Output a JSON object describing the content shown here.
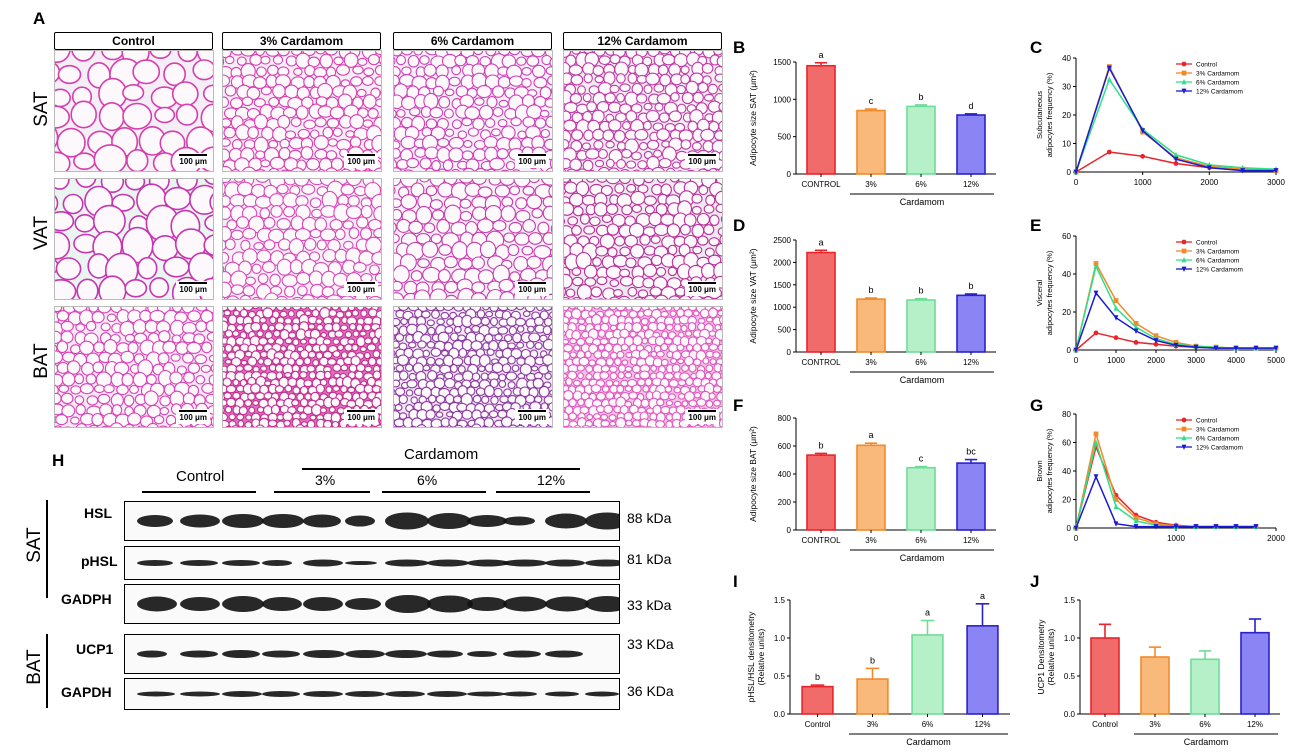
{
  "panels": {
    "A": "A",
    "B": "B",
    "C": "C",
    "D": "D",
    "E": "E",
    "F": "F",
    "G": "G",
    "H": "H",
    "I": "I",
    "J": "J"
  },
  "histology": {
    "columns": [
      "Control",
      "3% Cardamom",
      "6% Cardamom",
      "12% Cardamom"
    ],
    "rows": [
      "SAT",
      "VAT",
      "BAT"
    ],
    "scale_bar": "100 μm"
  },
  "western": {
    "group_label": "Cardamom",
    "control_label": "Control",
    "doses": [
      "3%",
      "6%",
      "12%"
    ],
    "sat_label": "SAT",
    "bat_label": "BAT",
    "bands": [
      {
        "protein": "HSL",
        "kda": "88 kDa"
      },
      {
        "protein": "pHSL",
        "kda": "81 kDa"
      },
      {
        "protein": "GADPH",
        "kda": "33 kDa"
      },
      {
        "protein": "UCP1",
        "kda": "33 KDa"
      },
      {
        "protein": "GAPDH",
        "kda": "36 KDa"
      }
    ]
  },
  "colors": {
    "control": "#f26b6b",
    "c3": "#f9b97a",
    "c6": "#b6f0c8",
    "c12": "#8a84f5",
    "control_edge": "#e8252a",
    "c3_edge": "#f28a2a",
    "c6_edge": "#6fdc98",
    "c12_edge": "#2a22c8",
    "line_control": "#e8252a",
    "line_c3": "#f28a2a",
    "line_c6": "#2ee08a",
    "line_c12": "#1a1ad0"
  },
  "chart_data": [
    {
      "id": "B",
      "type": "bar",
      "categories": [
        "CONTROL",
        "3%",
        "6%",
        "12%"
      ],
      "values": [
        1450,
        850,
        905,
        790
      ],
      "errors": [
        40,
        20,
        20,
        15
      ],
      "letters": [
        "a",
        "c",
        "b",
        "d"
      ],
      "ylabel": "Adipocyte size SAT (μm²)",
      "xlabel": "Cardamom",
      "ylim": [
        0,
        1500
      ],
      "yticks": [
        0,
        500,
        1000,
        1500
      ]
    },
    {
      "id": "C",
      "type": "line",
      "ylabel_lines": [
        "Subcutaneous",
        "adipocytes frequency (%)"
      ],
      "xlim": [
        0,
        3000
      ],
      "ylim": [
        0,
        40
      ],
      "xticks": [
        0,
        1000,
        2000,
        3000
      ],
      "yticks": [
        0,
        10,
        20,
        30,
        40
      ],
      "legend": "top-right",
      "series": [
        {
          "name": "Control",
          "x": [
            0,
            500,
            1000,
            1500,
            2000,
            2500,
            3000
          ],
          "y": [
            0,
            7,
            5.5,
            3,
            1.5,
            1,
            0.5
          ]
        },
        {
          "name": "3% Cardamom",
          "x": [
            0,
            500,
            1000,
            1500,
            2000,
            2500,
            3000
          ],
          "y": [
            0,
            37,
            14,
            5,
            2,
            1,
            0.5
          ]
        },
        {
          "name": "6% Cardamom",
          "x": [
            0,
            500,
            1000,
            1500,
            2000,
            2500,
            3000
          ],
          "y": [
            0,
            32.5,
            15,
            6,
            2.5,
            1.5,
            1
          ]
        },
        {
          "name": "12% Cardamom",
          "x": [
            0,
            500,
            1000,
            1500,
            2000,
            2500,
            3000
          ],
          "y": [
            0,
            36.5,
            14.5,
            4.5,
            1.5,
            0.5,
            0.5
          ]
        }
      ]
    },
    {
      "id": "D",
      "type": "bar",
      "categories": [
        "CONTROL",
        "3%",
        "6%",
        "12%"
      ],
      "values": [
        2220,
        1180,
        1160,
        1265
      ],
      "errors": [
        50,
        25,
        30,
        30
      ],
      "letters": [
        "a",
        "b",
        "b",
        "b"
      ],
      "ylabel": "Adipocyte size VAT (μm²)",
      "xlabel": "Cardamom",
      "ylim": [
        0,
        2500
      ],
      "yticks": [
        0,
        500,
        1000,
        1500,
        2000,
        2500
      ]
    },
    {
      "id": "E",
      "type": "line",
      "ylabel_lines": [
        "Visceral",
        "adipocytes frequency (%)"
      ],
      "xlim": [
        0,
        5000
      ],
      "ylim": [
        0,
        60
      ],
      "xticks": [
        0,
        1000,
        2000,
        3000,
        4000,
        5000
      ],
      "yticks": [
        0,
        20,
        40,
        60
      ],
      "legend": "top-right",
      "series": [
        {
          "name": "Control",
          "x": [
            0,
            500,
            1000,
            1500,
            2000,
            2500,
            3000,
            3500,
            4000,
            4500,
            5000
          ],
          "y": [
            0,
            9,
            6.5,
            4,
            3,
            2,
            1.5,
            1,
            1,
            1,
            1
          ]
        },
        {
          "name": "3% Cardamom",
          "x": [
            0,
            500,
            1000,
            1500,
            2000,
            2500,
            3000,
            3500,
            4000,
            4500,
            5000
          ],
          "y": [
            0,
            45.5,
            26,
            14,
            7.5,
            4,
            2,
            1.5,
            1,
            1,
            1
          ]
        },
        {
          "name": "6% Cardamom",
          "x": [
            0,
            500,
            1000,
            1500,
            2000,
            2500,
            3000,
            3500,
            4000,
            4500,
            5000
          ],
          "y": [
            0,
            44,
            22,
            12,
            6,
            3,
            2,
            1.5,
            1,
            1,
            1
          ]
        },
        {
          "name": "12% Cardamom",
          "x": [
            0,
            500,
            1000,
            1500,
            2000,
            2500,
            3000,
            3500,
            4000,
            4500,
            5000
          ],
          "y": [
            0,
            30,
            17,
            10,
            5,
            2.5,
            1.5,
            1,
            1,
            1,
            1
          ]
        }
      ]
    },
    {
      "id": "F",
      "type": "bar",
      "categories": [
        "CONTROL",
        "3%",
        "6%",
        "12%"
      ],
      "values": [
        535,
        605,
        445,
        478
      ],
      "errors": [
        12,
        15,
        8,
        25
      ],
      "letters": [
        "b",
        "a",
        "c",
        "bc"
      ],
      "ylabel": "Adipocyte size BAT (μm²)",
      "xlabel": "Cardamom",
      "ylim": [
        0,
        800
      ],
      "yticks": [
        0,
        200,
        400,
        600,
        800
      ]
    },
    {
      "id": "G",
      "type": "line",
      "ylabel_lines": [
        "Brown",
        "adipocytes frequency (%)"
      ],
      "xlim": [
        0,
        2000
      ],
      "ylim": [
        0,
        80
      ],
      "xticks": [
        0,
        1000,
        2000
      ],
      "yticks": [
        0,
        20,
        40,
        60,
        80
      ],
      "legend": "top-right",
      "series": [
        {
          "name": "Control",
          "x": [
            0,
            200,
            400,
            600,
            800,
            1000,
            1200,
            1400,
            1600,
            1800
          ],
          "y": [
            0,
            57,
            23,
            9,
            4,
            2,
            1,
            1,
            1,
            1
          ]
        },
        {
          "name": "3% Cardamom",
          "x": [
            0,
            200,
            400,
            600,
            800,
            1000,
            1200,
            1400,
            1600,
            1800
          ],
          "y": [
            0,
            66,
            20,
            7,
            3,
            1.5,
            1,
            1,
            1,
            1
          ]
        },
        {
          "name": "6% Cardamom",
          "x": [
            0,
            200,
            400,
            600,
            800,
            1000,
            1200,
            1400,
            1600,
            1800
          ],
          "y": [
            0,
            60,
            15,
            5,
            2,
            1,
            1,
            1,
            1,
            1
          ]
        },
        {
          "name": "12% Cardamom",
          "x": [
            0,
            200,
            400,
            600,
            800,
            1000,
            1200,
            1400,
            1600,
            1800
          ],
          "y": [
            0,
            36,
            3,
            1,
            1,
            1,
            1,
            1,
            1,
            1
          ]
        }
      ]
    },
    {
      "id": "I",
      "type": "bar",
      "categories": [
        "Control",
        "3%",
        "6%",
        "12%"
      ],
      "values": [
        0.36,
        0.46,
        1.04,
        1.16
      ],
      "errors": [
        0.02,
        0.14,
        0.19,
        0.29
      ],
      "letters": [
        "b",
        "b",
        "a",
        "a"
      ],
      "ylabel_lines": [
        "pHSL/HSL densitometry",
        "(Relative units)"
      ],
      "xlabel": "Cardamom",
      "ylim": [
        0,
        1.5
      ],
      "yticks": [
        "0.0",
        "0.5",
        "1.0",
        "1.5"
      ]
    },
    {
      "id": "J",
      "type": "bar",
      "categories": [
        "Control",
        "3%",
        "6%",
        "12%"
      ],
      "values": [
        1.0,
        0.75,
        0.72,
        1.07
      ],
      "errors": [
        0.18,
        0.13,
        0.11,
        0.18
      ],
      "letters": [
        "",
        "",
        "",
        ""
      ],
      "ylabel_lines": [
        "UCP1 Densitometry",
        "(Relative units)"
      ],
      "xlabel": "Cardamom",
      "ylim": [
        0,
        1.5
      ],
      "yticks": [
        "0.0",
        "0.5",
        "1.0",
        "1.5"
      ]
    }
  ]
}
